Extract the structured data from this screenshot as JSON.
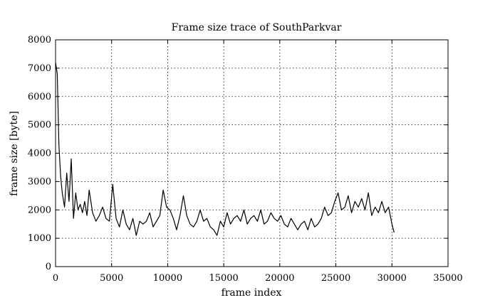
{
  "chart_data": {
    "type": "line",
    "title": "Frame size trace of SouthParkvar",
    "xlabel": "frame index",
    "ylabel": "frame size [byte]",
    "xlim": [
      0,
      35000
    ],
    "ylim": [
      0,
      8000
    ],
    "x_ticks": [
      0,
      5000,
      10000,
      15000,
      20000,
      25000,
      30000,
      35000
    ],
    "y_ticks": [
      0,
      1000,
      2000,
      3000,
      4000,
      5000,
      6000,
      7000,
      8000
    ],
    "x_tick_labels": [
      "0",
      "5000",
      "10000",
      "15000",
      "20000",
      "25000",
      "30000",
      "35000"
    ],
    "y_tick_labels": [
      "0",
      "1000",
      "2000",
      "3000",
      "4000",
      "5000",
      "6000",
      "7000",
      "8000"
    ],
    "grid": true,
    "series": [
      {
        "color": "#000000",
        "x": [
          0,
          150,
          300,
          450,
          600,
          800,
          1000,
          1200,
          1400,
          1600,
          1800,
          2000,
          2200,
          2400,
          2600,
          2800,
          3000,
          3300,
          3600,
          3900,
          4200,
          4500,
          4800,
          5100,
          5400,
          5700,
          6000,
          6300,
          6600,
          6900,
          7200,
          7500,
          7800,
          8100,
          8400,
          8700,
          9000,
          9300,
          9600,
          9900,
          10200,
          10500,
          10800,
          11100,
          11400,
          11700,
          12000,
          12300,
          12600,
          12900,
          13200,
          13500,
          13800,
          14100,
          14400,
          14700,
          15000,
          15300,
          15600,
          15900,
          16200,
          16500,
          16800,
          17100,
          17400,
          17700,
          18000,
          18300,
          18600,
          18900,
          19200,
          19500,
          19800,
          20100,
          20400,
          20700,
          21000,
          21300,
          21600,
          21900,
          22200,
          22500,
          22800,
          23100,
          23400,
          23700,
          24000,
          24300,
          24600,
          24900,
          25200,
          25500,
          25800,
          26100,
          26400,
          26700,
          27000,
          27300,
          27600,
          27900,
          28200,
          28500,
          28800,
          29100,
          29400,
          29700,
          30000,
          30200
        ],
        "values": [
          7200,
          6800,
          4300,
          3200,
          2600,
          2100,
          3300,
          2300,
          3800,
          1700,
          2600,
          2000,
          2200,
          1900,
          2300,
          1800,
          2700,
          1900,
          1600,
          1800,
          2100,
          1700,
          1600,
          2900,
          1700,
          1400,
          2000,
          1500,
          1300,
          1700,
          1100,
          1600,
          1500,
          1600,
          1900,
          1400,
          1600,
          1800,
          2700,
          2100,
          2000,
          1700,
          1300,
          1800,
          2500,
          1800,
          1500,
          1400,
          1600,
          2000,
          1600,
          1700,
          1400,
          1300,
          1100,
          1600,
          1400,
          1900,
          1500,
          1700,
          1800,
          1600,
          2000,
          1500,
          1700,
          1800,
          1600,
          2000,
          1500,
          1600,
          1900,
          1700,
          1600,
          1800,
          1500,
          1400,
          1700,
          1500,
          1300,
          1500,
          1600,
          1300,
          1700,
          1400,
          1500,
          1700,
          2100,
          1800,
          1900,
          2300,
          2600,
          2000,
          2100,
          2500,
          1900,
          2300,
          2100,
          2400,
          2000,
          2600,
          1800,
          2100,
          1900,
          2300,
          1900,
          2100,
          1500,
          1200
        ]
      }
    ]
  }
}
